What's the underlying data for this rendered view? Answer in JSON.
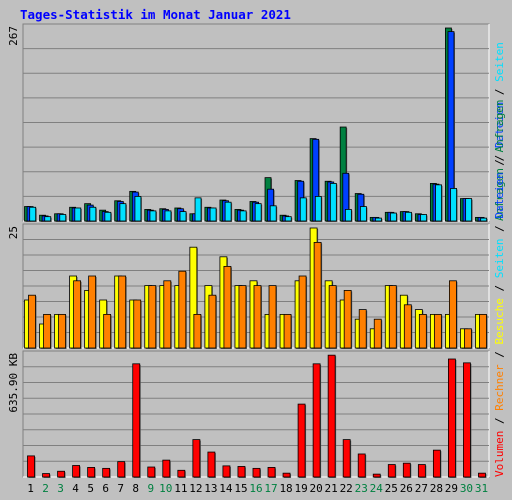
{
  "chart_data": {
    "type": "bar",
    "title": "Tages-Statistik im Monat Januar 2021",
    "colors": {
      "background": "#c0c0c0",
      "title": "#0000ff",
      "grid": "#808080",
      "axis_line": "#808080",
      "anfragen": "#008040",
      "dateien": "#0040ff",
      "seiten": "#00e0ff",
      "besuche": "#ffff00",
      "rechner": "#ff8000",
      "volumen": "#ff0000",
      "weekend_tick": "#008040",
      "weekday_tick": "#000000"
    },
    "x_ticks": [
      {
        "label": "1",
        "weekend": false
      },
      {
        "label": "2",
        "weekend": true
      },
      {
        "label": "3",
        "weekend": true
      },
      {
        "label": "4",
        "weekend": false
      },
      {
        "label": "5",
        "weekend": false
      },
      {
        "label": "6",
        "weekend": false
      },
      {
        "label": "7",
        "weekend": false
      },
      {
        "label": "8",
        "weekend": false
      },
      {
        "label": "9",
        "weekend": true
      },
      {
        "label": "10",
        "weekend": true
      },
      {
        "label": "11",
        "weekend": false
      },
      {
        "label": "12",
        "weekend": false
      },
      {
        "label": "13",
        "weekend": false
      },
      {
        "label": "14",
        "weekend": false
      },
      {
        "label": "15",
        "weekend": false
      },
      {
        "label": "16",
        "weekend": true
      },
      {
        "label": "17",
        "weekend": true
      },
      {
        "label": "18",
        "weekend": false
      },
      {
        "label": "19",
        "weekend": false
      },
      {
        "label": "20",
        "weekend": false
      },
      {
        "label": "21",
        "weekend": false
      },
      {
        "label": "22",
        "weekend": false
      },
      {
        "label": "23",
        "weekend": true
      },
      {
        "label": "24",
        "weekend": true
      },
      {
        "label": "25",
        "weekend": false
      },
      {
        "label": "26",
        "weekend": false
      },
      {
        "label": "27",
        "weekend": false
      },
      {
        "label": "28",
        "weekend": false
      },
      {
        "label": "29",
        "weekend": false
      },
      {
        "label": "30",
        "weekend": true
      },
      {
        "label": "31",
        "weekend": true
      }
    ],
    "panels": [
      {
        "id": "top",
        "ymax_label": "267",
        "ymax": 267,
        "right_label": [
          {
            "text": "Anfragen",
            "color_key": "anfragen"
          },
          {
            "text": " / ",
            "color_key": "weekday_tick"
          },
          {
            "text": "Dateien",
            "color_key": "dateien"
          },
          {
            "text": " / ",
            "color_key": "weekday_tick"
          },
          {
            "text": "Seiten",
            "color_key": "seiten"
          }
        ],
        "series": [
          {
            "name": "Anfragen",
            "color_key": "anfragen",
            "values": [
              20,
              8,
              10,
              19,
              24,
              15,
              28,
              41,
              16,
              17,
              18,
              10,
              19,
              29,
              16,
              27,
              60,
              8,
              56,
              114,
              55,
              130,
              38,
              5,
              12,
              13,
              10,
              52,
              267,
              31,
              5
            ]
          },
          {
            "name": "Dateien",
            "color_key": "dateien",
            "values": [
              20,
              7,
              10,
              18,
              22,
              13,
              27,
              40,
              15,
              16,
              17,
              10,
              18,
              28,
              15,
              26,
              44,
              7,
              55,
              113,
              54,
              66,
              37,
              5,
              12,
              13,
              9,
              51,
              262,
              31,
              5
            ]
          },
          {
            "name": "Seiten",
            "color_key": "seiten",
            "values": [
              19,
              6,
              9,
              18,
              19,
              12,
              24,
              34,
              14,
              14,
              13,
              32,
              18,
              26,
              14,
              24,
              21,
              6,
              32,
              34,
              52,
              16,
              20,
              4,
              11,
              12,
              9,
              50,
              45,
              31,
              4
            ]
          }
        ]
      },
      {
        "id": "middle",
        "ymax_label": "25",
        "ymax": 25,
        "series": [
          {
            "name": "Besuche",
            "color_key": "besuche",
            "values": [
              10,
              5,
              7,
              15,
              12,
              10,
              15,
              10,
              13,
              13,
              13,
              21,
              13,
              19,
              13,
              14,
              7,
              7,
              14,
              25,
              14,
              10,
              6,
              4,
              13,
              11,
              8,
              7,
              7,
              4,
              7
            ]
          },
          {
            "name": "Rechner",
            "color_key": "rechner",
            "values": [
              11,
              7,
              7,
              14,
              15,
              7,
              15,
              10,
              13,
              14,
              16,
              7,
              11,
              17,
              13,
              13,
              13,
              7,
              15,
              22,
              13,
              12,
              8,
              6,
              13,
              9,
              7,
              7,
              14,
              4,
              7
            ]
          }
        ]
      },
      {
        "id": "bottom",
        "ymax_label": "635.90 KB",
        "ymax": 635.9,
        "right_label": [
          {
            "text": "Volumen",
            "color_key": "volumen"
          },
          {
            "text": " / ",
            "color_key": "weekday_tick"
          },
          {
            "text": "Rechner",
            "color_key": "rechner"
          },
          {
            "text": " / ",
            "color_key": "weekday_tick"
          },
          {
            "text": "Besuche",
            "color_key": "besuche"
          },
          {
            "text": " / ",
            "color_key": "weekday_tick"
          },
          {
            "text": "Seiten",
            "color_key": "seiten"
          },
          {
            "text": " / ",
            "color_key": "weekday_tick"
          },
          {
            "text": "Dateien",
            "color_key": "dateien"
          },
          {
            "text": " / ",
            "color_key": "weekday_tick"
          },
          {
            "text": "Anfragen",
            "color_key": "anfragen"
          }
        ],
        "series": [
          {
            "name": "Volumen",
            "color_key": "volumen",
            "values": [
              110,
              18,
              30,
              60,
              50,
              45,
              80,
              590,
              52,
              88,
              35,
              195,
              130,
              58,
              55,
              45,
              50,
              20,
              380,
              590,
              635,
              195,
              120,
              15,
              65,
              72,
              65,
              140,
              615,
              595,
              20
            ]
          }
        ]
      }
    ]
  }
}
